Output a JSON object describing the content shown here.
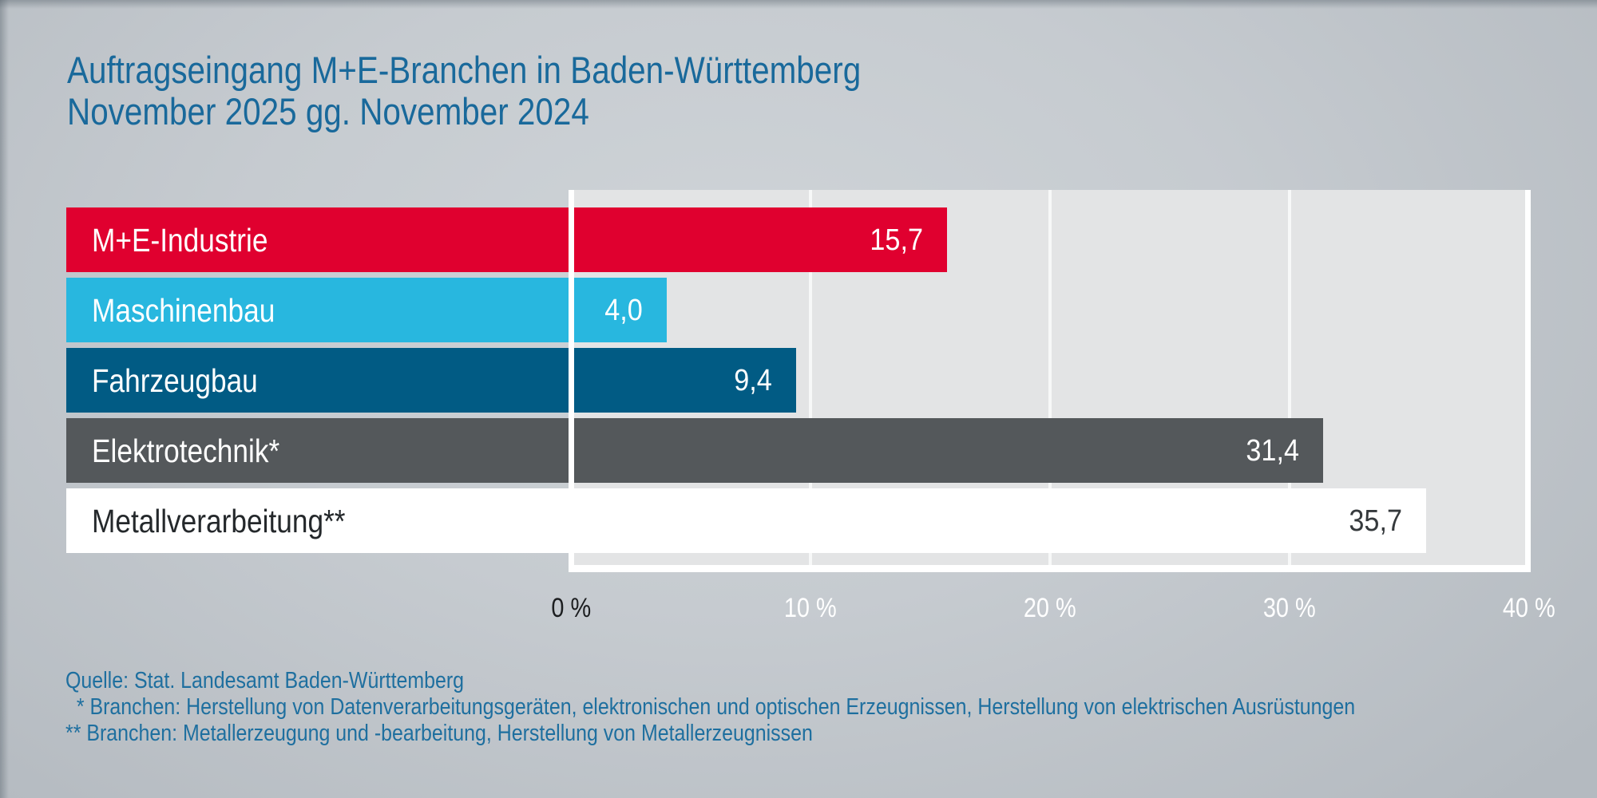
{
  "page": {
    "title_line1": "Auftragseingang M+E-Branchen in Baden-Württemberg",
    "title_line2": "November 2025 gg. November 2024"
  },
  "chart_data": {
    "type": "bar",
    "orientation": "horizontal",
    "title": "Auftragseingang M+E-Branchen in Baden-Württemberg November 2025 gg. November 2024",
    "xlabel": "",
    "ylabel": "",
    "unit": "%",
    "categories": [
      "M+E-Industrie",
      "Maschinenbau",
      "Fahrzeugbau",
      "Elektrotechnik*",
      "Metallverarbeitung**"
    ],
    "values": [
      15.7,
      4.0,
      9.4,
      31.4,
      35.7
    ],
    "value_labels": [
      "15,7",
      "4,0",
      "9,4",
      "31,4",
      "35,7"
    ],
    "bar_colors": [
      "#e0002f",
      "#28b7df",
      "#015b84",
      "#54585b",
      "#ffffff"
    ],
    "category_text_colors": [
      "#ffffff",
      "#ffffff",
      "#ffffff",
      "#ffffff",
      "#24282b"
    ],
    "value_text_colors": [
      "#ffffff",
      "#ffffff",
      "#ffffff",
      "#ffffff",
      "#35393c"
    ],
    "xlim": [
      0,
      40
    ],
    "x_ticks": [
      {
        "label": "0 %",
        "value": 0,
        "color": "#1c1e20"
      },
      {
        "label": "10 %",
        "value": 10,
        "color": "#ffffff"
      },
      {
        "label": "20 %",
        "value": 20,
        "color": "#ffffff"
      },
      {
        "label": "30 %",
        "value": 30,
        "color": "#ffffff"
      },
      {
        "label": "40 %",
        "value": 40,
        "color": "#ffffff"
      }
    ],
    "gridline_values": [
      10,
      20,
      30
    ],
    "grid": true,
    "legend": "none"
  },
  "footer": {
    "source": "Quelle: Stat. Landesamt Baden-Württemberg",
    "footnote1": "  * Branchen: Herstellung von Datenverarbeitungsgeräten, elektronischen und optischen Erzeugnissen, Herstellung von elektrischen Ausrüstungen",
    "footnote2": "** Branchen: Metallerzeugung und -bearbeitung, Herstellung von Metallerzeugnissen"
  },
  "colors": {
    "title_text": "#19699b",
    "footer_text": "#1e6f9f",
    "axis_zero_tick_text": "#1c1e20",
    "plot_background": "#e3e4e5",
    "plot_frame": "#ffffff",
    "page_background_center": "#cfd4d8",
    "page_background_edge": "#b4bac0"
  }
}
